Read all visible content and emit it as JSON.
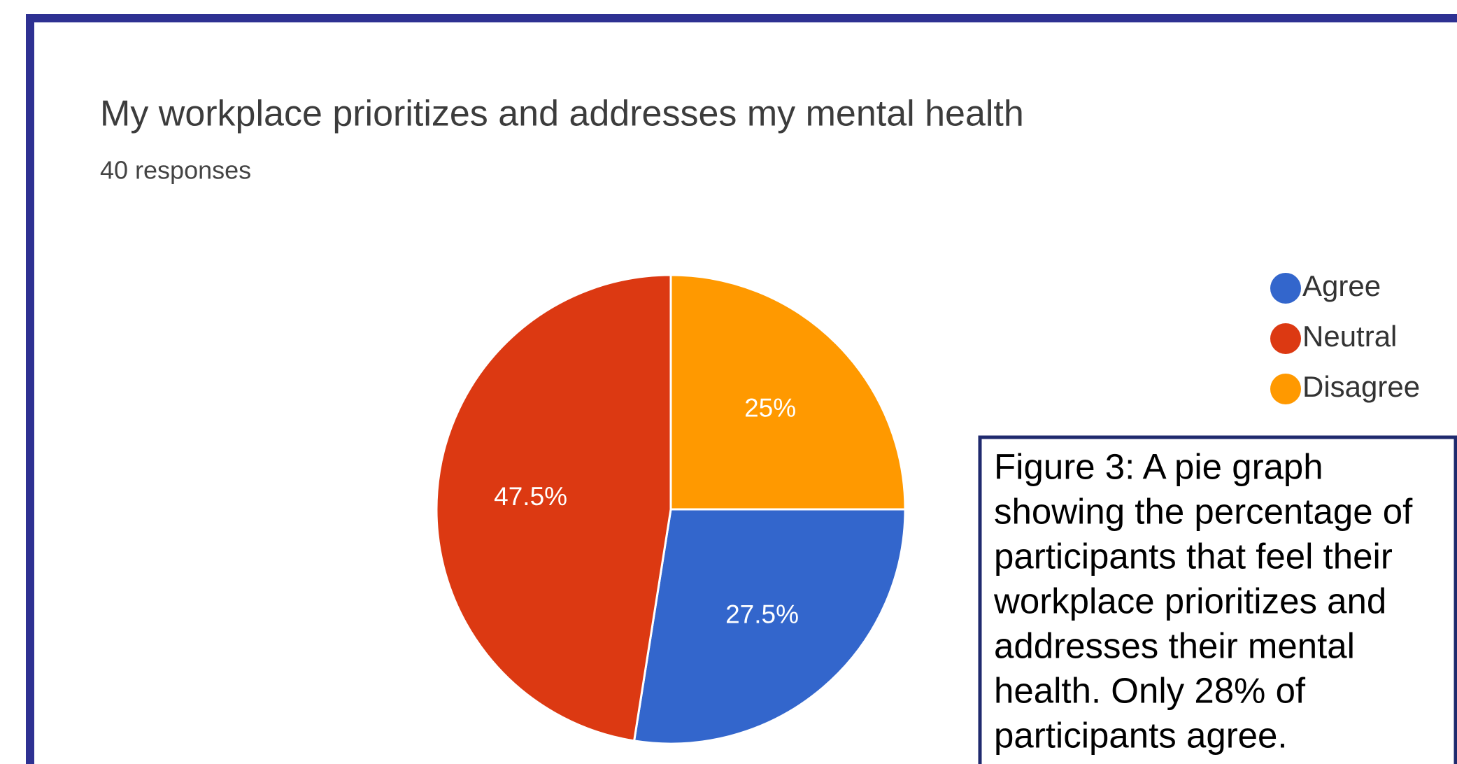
{
  "chart_data": {
    "type": "pie",
    "title": "My workplace prioritizes and addresses my mental health",
    "subtitle": "40 responses",
    "categories": [
      "Agree",
      "Neutral",
      "Disagree"
    ],
    "values": [
      27.5,
      47.5,
      25
    ],
    "value_labels": [
      "27.5%",
      "47.5%",
      "25%"
    ],
    "colors": [
      "#3366cc",
      "#dc3912",
      "#ff9900"
    ],
    "legend": "right"
  },
  "caption": {
    "lines": [
      "Figure 3: A pie graph",
      "showing the percentage of",
      "participants that feel their",
      "workplace prioritizes and",
      "addresses their mental",
      "health. Only 28% of",
      "participants agree."
    ]
  }
}
